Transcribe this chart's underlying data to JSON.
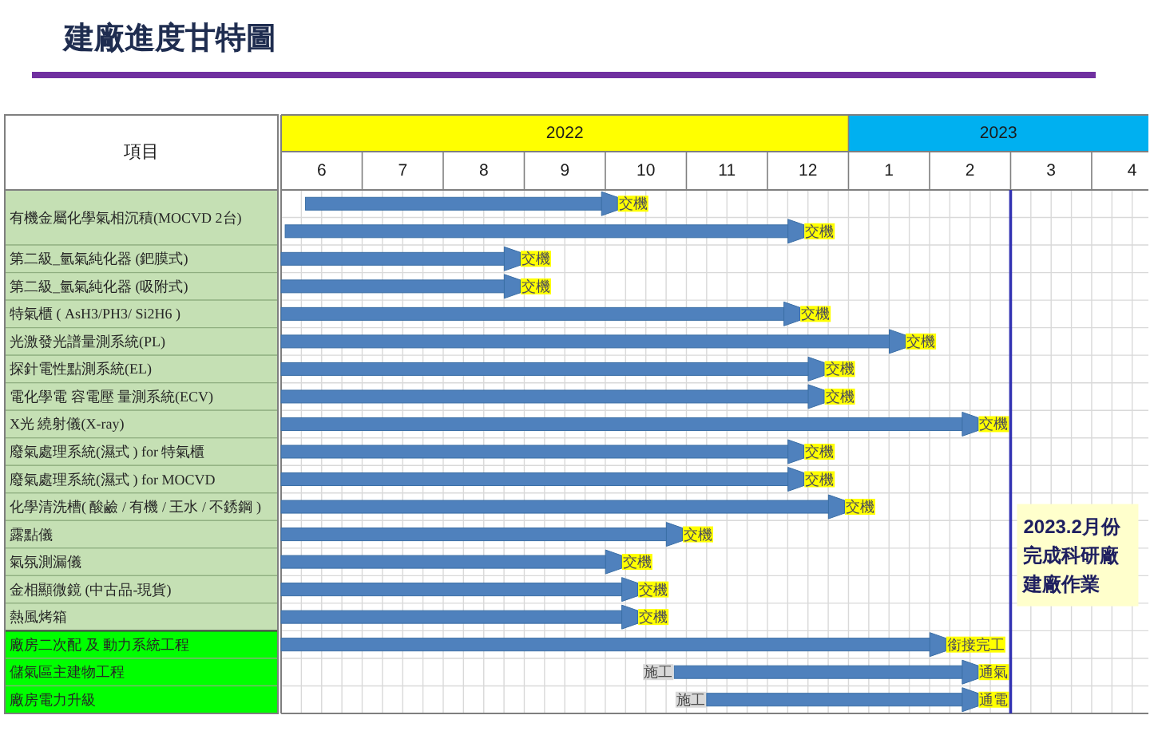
{
  "chart_data": {
    "type": "bar",
    "orientation": "horizontal",
    "title": "建廠進度甘特圖",
    "ylabel": "項目",
    "xlabel": "2022",
    "x2label": "2023",
    "categories": [
      "有機金屬化學氣相沉積(MOCVD 2台)",
      null,
      "第二級_氫氣純化器 (鈀膜式)",
      "第二級_氫氣純化器 (吸附式)",
      "特氣櫃 ( AsH3/PH3/ Si2H6 )",
      "光激發光譜量測系統(PL)",
      "探針電性點測系統(EL)",
      "電化學電 容電壓 量測系統(ECV)",
      "X光 繞射儀(X-ray)",
      "廢氣處理系統(濕式 ) for 特氣櫃",
      "廢氣處理系統(濕式 ) for MOCVD",
      "化學清洗槽( 酸鹼 / 有機 / 王水 / 不銹鋼 )",
      "露點儀",
      "氣氛測漏儀",
      "金相顯微鏡 (中古品-現貨)",
      "熱風烤箱",
      "廠房二次配 及 動力系統工程",
      "儲氣區主建物工程",
      "廠房電力升級"
    ],
    "base": [
      5.8,
      5.55,
      5.5,
      5.5,
      5.5,
      5.5,
      5.5,
      5.5,
      5.5,
      5.5,
      5.5,
      5.5,
      5.5,
      5.5,
      5.5,
      5.5,
      5.5,
      10.35,
      10.75
    ],
    "values": [
      3.85,
      6.4,
      2.95,
      2.95,
      6.4,
      7.7,
      6.7,
      6.7,
      8.6,
      6.45,
      6.45,
      6.95,
      4.95,
      4.2,
      4.4,
      4.4,
      8.2,
      3.75,
      3.35
    ],
    "color": "#4f81bd",
    "value_labels": [
      "交機",
      "交機",
      "交機",
      "交機",
      "交機",
      "交機",
      "交機",
      "交機",
      "交機",
      "交機",
      "交機",
      "交機",
      "交機",
      "交機",
      "交機",
      "交機",
      "銜接完工",
      "通氣",
      "通電"
    ],
    "xlim": [
      5.5,
      16.2
    ],
    "xticks": [
      {
        "value": 5.5,
        "label": null
      },
      {
        "value": 5.75,
        "label": null
      },
      6,
      {
        "value": 6.25,
        "label": null
      },
      {
        "value": 6.5,
        "label": null
      },
      {
        "value": 6.75,
        "label": null
      },
      7,
      {
        "value": 7.25,
        "label": null
      },
      {
        "value": 7.5,
        "label": null
      },
      {
        "value": 7.75,
        "label": null
      },
      8,
      {
        "value": 8.25,
        "label": null
      },
      {
        "value": 8.5,
        "label": null
      },
      {
        "value": 8.75,
        "label": null
      },
      9,
      {
        "value": 9.25,
        "label": null
      },
      {
        "value": 9.5,
        "label": null
      },
      {
        "value": 9.75,
        "label": null
      },
      10,
      {
        "value": 10.25,
        "label": null
      },
      {
        "value": 10.5,
        "label": null
      },
      {
        "value": 10.75,
        "label": null
      },
      11,
      {
        "value": 11.25,
        "label": null
      },
      {
        "value": 11.5,
        "label": null
      },
      {
        "value": 11.75,
        "label": null
      },
      12,
      {
        "value": 12.25,
        "label": null
      }
    ],
    "x2lim": [
      -6.5,
      4.2
    ],
    "x2ticks": [
      {
        "value": 0.5,
        "label": null
      },
      {
        "value": 0.75,
        "label": null
      },
      1,
      {
        "value": 1.25,
        "label": null
      },
      {
        "value": 1.5,
        "label": null
      },
      {
        "value": 1.75,
        "label": null
      },
      2,
      {
        "value": 2.25,
        "label": null
      },
      {
        "value": 2.5,
        "label": null
      },
      {
        "value": 2.75,
        "label": null
      },
      3,
      {
        "value": 3.25,
        "label": null
      },
      {
        "value": 3.5,
        "label": null
      },
      {
        "value": 3.75,
        "label": null
      },
      4
    ],
    "grid": true,
    "ref_lines": [
      {
        "axis": "x",
        "value": 14.5,
        "label": "2023.2月份完成科研廠建廠作業",
        "color": "#3333b3"
      }
    ],
    "annotations": [
      {
        "text": "施工",
        "x": 10.35,
        "y": "儲氣區主建物工程"
      },
      {
        "text": "施工",
        "x": 10.75,
        "y": "廠房電力升級"
      }
    ]
  }
}
